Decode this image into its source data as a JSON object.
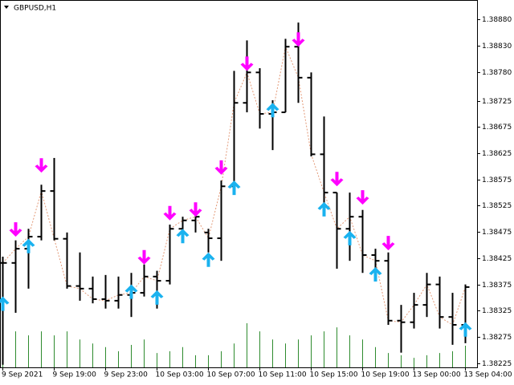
{
  "chart_data": {
    "type": "ohlc",
    "title": "GBPUSD,H1",
    "categories": [
      "9 Sep 2021",
      null,
      null,
      null,
      "9 Sep 19:00",
      null,
      null,
      null,
      "9 Sep 23:00",
      null,
      null,
      null,
      "10 Sep 03:00",
      null,
      null,
      null,
      "10 Sep 07:00",
      null,
      null,
      null,
      "10 Sep 11:00",
      null,
      null,
      null,
      "10 Sep 15:00",
      null,
      null,
      null,
      "10 Sep 19:00",
      null,
      null,
      null,
      "13 Sep 00:00",
      null,
      null,
      null,
      "13 Sep 04:00"
    ],
    "open": [
      1.38416,
      1.38416,
      1.38443,
      1.38466,
      1.38553,
      1.38462,
      1.38372,
      1.38367,
      1.38347,
      1.38344,
      1.38355,
      1.38359,
      1.3839,
      1.38382,
      1.38481,
      1.38497,
      1.38474,
      1.38463,
      1.38562,
      1.38721,
      1.38779,
      1.387,
      1.38703,
      1.38828,
      1.38769,
      1.38623,
      1.3855,
      1.38481,
      1.38504,
      1.38431,
      1.3842,
      1.38306,
      1.38303,
      1.38336,
      1.38375,
      1.38313,
      1.38298
    ],
    "high": [
      1.38428,
      1.38459,
      1.38481,
      1.38565,
      1.38616,
      1.38474,
      1.38436,
      1.3839,
      1.38393,
      1.3839,
      1.38397,
      1.38413,
      1.38401,
      1.38489,
      1.38504,
      1.38512,
      1.38481,
      1.38573,
      1.38782,
      1.3884,
      1.38787,
      1.38726,
      1.38843,
      1.38874,
      1.38779,
      1.38695,
      1.3855,
      1.3855,
      1.38517,
      1.38443,
      1.38436,
      1.38336,
      1.38359,
      1.38397,
      1.3839,
      1.38359,
      1.38375
    ],
    "low": [
      1.38222,
      1.38321,
      1.38367,
      1.38459,
      1.38459,
      1.38367,
      1.38344,
      1.38339,
      1.38329,
      1.38329,
      1.38313,
      1.38352,
      1.38329,
      1.38375,
      1.38459,
      1.38474,
      1.38436,
      1.3842,
      1.3855,
      1.38703,
      1.38672,
      1.38631,
      1.38703,
      1.38721,
      1.38619,
      1.38507,
      1.38405,
      1.3842,
      1.38397,
      1.38397,
      1.38298,
      1.38245,
      1.38291,
      1.38313,
      1.38291,
      1.3826,
      1.38263
    ],
    "close": [
      1.38416,
      1.38443,
      1.38466,
      1.38553,
      1.38462,
      1.38372,
      1.38367,
      1.38347,
      1.38344,
      1.38355,
      1.38359,
      1.3839,
      1.38382,
      1.38481,
      1.38497,
      1.38504,
      1.38463,
      1.38562,
      1.38721,
      1.38779,
      1.387,
      1.38703,
      1.38828,
      1.38769,
      1.38623,
      1.3855,
      1.38481,
      1.38504,
      1.38431,
      1.3842,
      1.38306,
      1.38303,
      1.38336,
      1.38375,
      1.38313,
      1.38298,
      1.3837
    ],
    "volume": [
      87,
      98,
      87,
      98,
      87,
      98,
      76,
      65,
      55,
      44,
      61,
      76,
      39,
      44,
      55,
      33,
      33,
      44,
      65,
      120,
      98,
      76,
      65,
      76,
      87,
      98,
      109,
      87,
      76,
      55,
      39,
      33,
      26,
      33,
      39,
      44,
      59
    ],
    "volume_ylim": [
      0,
      1000
    ],
    "up_arrows": [
      1.38352,
      null,
      1.38462,
      null,
      null,
      null,
      null,
      null,
      null,
      null,
      1.38375,
      null,
      1.38364,
      null,
      1.38481,
      null,
      1.38436,
      null,
      1.38573,
      null,
      null,
      1.38721,
      null,
      null,
      null,
      1.38532,
      null,
      1.38477,
      null,
      1.38408,
      null,
      null,
      null,
      null,
      null,
      null,
      1.38303
    ],
    "down_arrows": [
      null,
      1.38466,
      null,
      1.38588,
      null,
      null,
      null,
      null,
      null,
      null,
      null,
      1.38413,
      null,
      1.38497,
      null,
      1.38504,
      null,
      1.38584,
      null,
      1.38782,
      null,
      null,
      null,
      1.38828,
      null,
      null,
      1.38562,
      null,
      1.38527,
      null,
      1.3844,
      null,
      null,
      null,
      null,
      null,
      null
    ],
    "ylim": [
      1.38217,
      1.38917
    ],
    "yticks": [
      {
        "value": 1.3888,
        "label": "1.38880"
      },
      {
        "value": 1.3883,
        "label": "1.38830"
      },
      {
        "value": 1.3878,
        "label": "1.38780"
      },
      1.38725,
      1.38675,
      1.38625,
      1.38575,
      1.38525,
      1.38475,
      1.38425,
      1.38375,
      1.38325,
      1.38275,
      1.38225
    ],
    "bar_color": "#000000",
    "volume_color": "#2e8b2e",
    "up_color": "#1ab2ef",
    "down_color": "#ff00ff",
    "line_color": "#e39a78"
  }
}
